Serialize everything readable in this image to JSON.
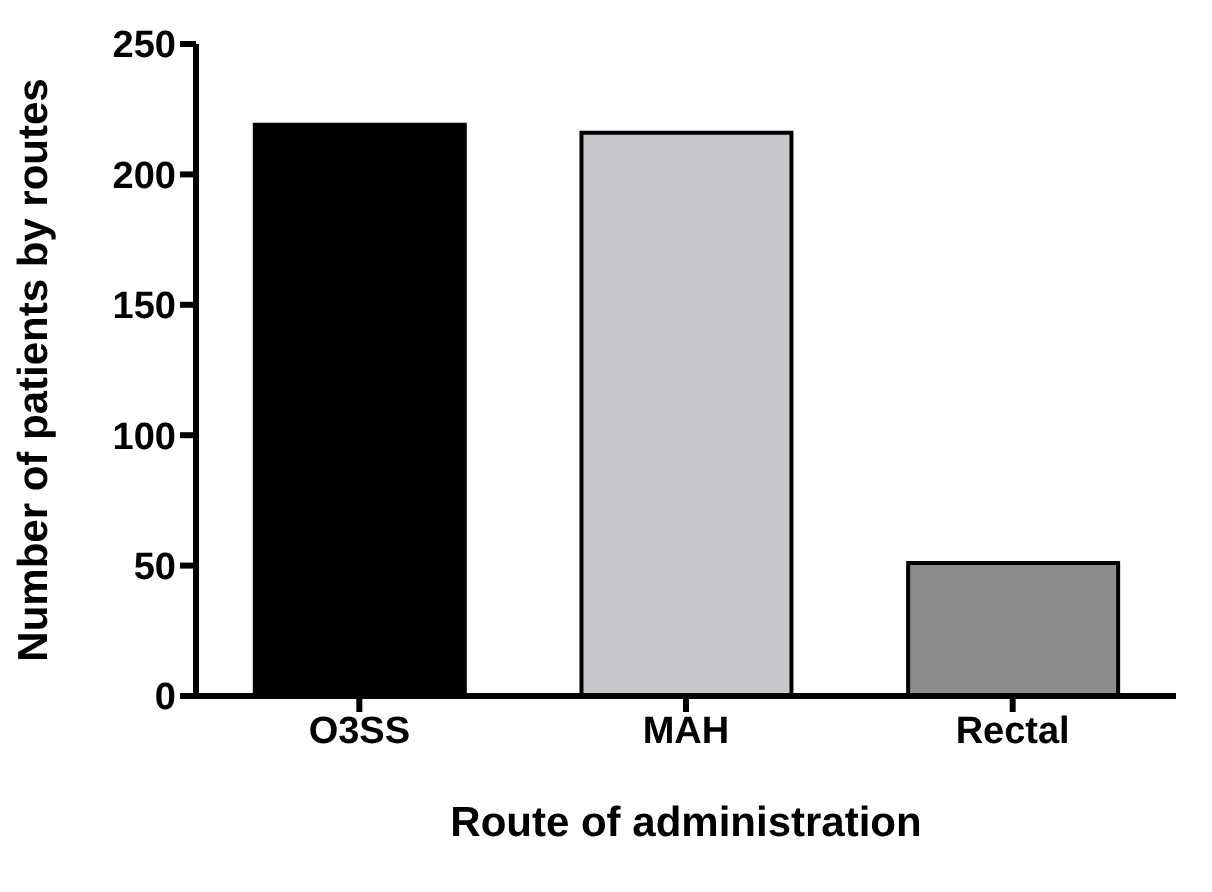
{
  "chart_data": {
    "type": "bar",
    "xlabel": "Route of administration",
    "ylabel": "Number of patients by routes",
    "categories": [
      "O3SS",
      "MAH",
      "Rectal"
    ],
    "values": [
      219,
      216,
      51
    ],
    "colors": [
      "#000000",
      "#c8c8cc",
      "#8c8c8c"
    ],
    "ylim": [
      0,
      250
    ],
    "yticks": [
      0,
      50,
      100,
      150,
      200,
      250
    ],
    "grid": false,
    "legend": false
  }
}
